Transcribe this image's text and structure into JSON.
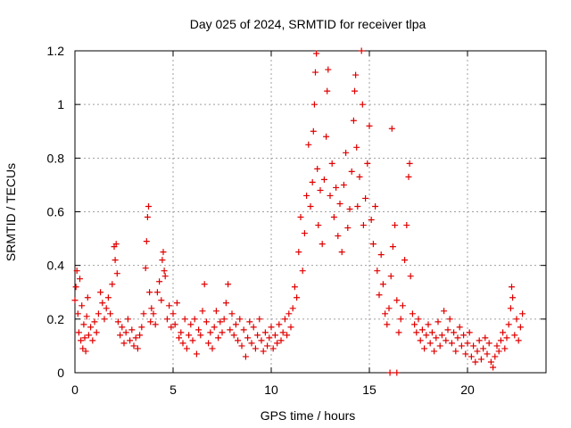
{
  "chart_data": {
    "type": "scatter",
    "title": "Day 025 of 2024, SRMTID for receiver tlpa",
    "xlabel": "GPS time / hours",
    "ylabel": "SRMTID / TECUs",
    "xlim": [
      0,
      24
    ],
    "ylim": [
      0,
      1.2
    ],
    "x_ticks": [
      0,
      5,
      10,
      15,
      20
    ],
    "x_tick_labels": [
      "0",
      "5",
      "10",
      "15",
      "20"
    ],
    "y_ticks": [
      0,
      0.2,
      0.4,
      0.6,
      0.8,
      1.0,
      1.2
    ],
    "y_tick_labels": [
      "0",
      "0.2",
      "0.4",
      "0.6",
      "0.8",
      "1",
      "1.2"
    ],
    "grid": true,
    "marker": "plus",
    "series": [
      {
        "name": "SRMTID",
        "color": "#e00000",
        "points": [
          [
            0.0,
            0.27
          ],
          [
            0.05,
            0.32
          ],
          [
            0.1,
            0.38
          ],
          [
            0.15,
            0.22
          ],
          [
            0.2,
            0.15
          ],
          [
            0.25,
            0.35
          ],
          [
            0.3,
            0.12
          ],
          [
            0.35,
            0.25
          ],
          [
            0.4,
            0.09
          ],
          [
            0.45,
            0.18
          ],
          [
            0.5,
            0.13
          ],
          [
            0.55,
            0.08
          ],
          [
            0.6,
            0.21
          ],
          [
            0.65,
            0.28
          ],
          [
            0.7,
            0.14
          ],
          [
            0.8,
            0.17
          ],
          [
            0.9,
            0.12
          ],
          [
            1.0,
            0.19
          ],
          [
            1.1,
            0.15
          ],
          [
            1.2,
            0.22
          ],
          [
            1.3,
            0.3
          ],
          [
            1.4,
            0.26
          ],
          [
            1.5,
            0.2
          ],
          [
            1.6,
            0.24
          ],
          [
            1.7,
            0.28
          ],
          [
            1.8,
            0.22
          ],
          [
            1.9,
            0.33
          ],
          [
            2.0,
            0.47
          ],
          [
            2.05,
            0.42
          ],
          [
            2.1,
            0.48
          ],
          [
            2.15,
            0.37
          ],
          [
            2.2,
            0.19
          ],
          [
            2.3,
            0.14
          ],
          [
            2.4,
            0.17
          ],
          [
            2.5,
            0.11
          ],
          [
            2.6,
            0.15
          ],
          [
            2.7,
            0.2
          ],
          [
            2.8,
            0.12
          ],
          [
            2.9,
            0.16
          ],
          [
            3.0,
            0.1
          ],
          [
            3.1,
            0.13
          ],
          [
            3.2,
            0.09
          ],
          [
            3.3,
            0.14
          ],
          [
            3.4,
            0.17
          ],
          [
            3.5,
            0.22
          ],
          [
            3.6,
            0.39
          ],
          [
            3.65,
            0.49
          ],
          [
            3.7,
            0.58
          ],
          [
            3.75,
            0.62
          ],
          [
            3.8,
            0.3
          ],
          [
            3.85,
            0.19
          ],
          [
            3.9,
            0.24
          ],
          [
            4.0,
            0.22
          ],
          [
            4.1,
            0.18
          ],
          [
            4.2,
            0.3
          ],
          [
            4.3,
            0.34
          ],
          [
            4.4,
            0.27
          ],
          [
            4.45,
            0.42
          ],
          [
            4.5,
            0.45
          ],
          [
            4.55,
            0.38
          ],
          [
            4.6,
            0.36
          ],
          [
            4.7,
            0.2
          ],
          [
            4.8,
            0.25
          ],
          [
            4.9,
            0.17
          ],
          [
            5.0,
            0.22
          ],
          [
            5.1,
            0.18
          ],
          [
            5.2,
            0.26
          ],
          [
            5.3,
            0.13
          ],
          [
            5.4,
            0.15
          ],
          [
            5.5,
            0.11
          ],
          [
            5.6,
            0.2
          ],
          [
            5.7,
            0.09
          ],
          [
            5.8,
            0.14
          ],
          [
            5.9,
            0.18
          ],
          [
            6.0,
            0.12
          ],
          [
            6.1,
            0.2
          ],
          [
            6.2,
            0.07
          ],
          [
            6.3,
            0.16
          ],
          [
            6.4,
            0.14
          ],
          [
            6.5,
            0.23
          ],
          [
            6.6,
            0.33
          ],
          [
            6.7,
            0.19
          ],
          [
            6.8,
            0.11
          ],
          [
            6.9,
            0.15
          ],
          [
            7.0,
            0.09
          ],
          [
            7.1,
            0.17
          ],
          [
            7.2,
            0.23
          ],
          [
            7.3,
            0.13
          ],
          [
            7.4,
            0.19
          ],
          [
            7.5,
            0.15
          ],
          [
            7.6,
            0.2
          ],
          [
            7.7,
            0.26
          ],
          [
            7.8,
            0.33
          ],
          [
            7.9,
            0.16
          ],
          [
            8.0,
            0.22
          ],
          [
            8.1,
            0.14
          ],
          [
            8.2,
            0.18
          ],
          [
            8.3,
            0.12
          ],
          [
            8.4,
            0.2
          ],
          [
            8.5,
            0.1
          ],
          [
            8.6,
            0.16
          ],
          [
            8.7,
            0.06
          ],
          [
            8.8,
            0.13
          ],
          [
            8.9,
            0.19
          ],
          [
            9.0,
            0.11
          ],
          [
            9.1,
            0.17
          ],
          [
            9.2,
            0.09
          ],
          [
            9.3,
            0.14
          ],
          [
            9.4,
            0.2
          ],
          [
            9.5,
            0.12
          ],
          [
            9.6,
            0.08
          ],
          [
            9.7,
            0.15
          ],
          [
            9.8,
            0.1
          ],
          [
            9.9,
            0.13
          ],
          [
            10.0,
            0.17
          ],
          [
            10.1,
            0.09
          ],
          [
            10.2,
            0.14
          ],
          [
            10.3,
            0.11
          ],
          [
            10.4,
            0.18
          ],
          [
            10.5,
            0.12
          ],
          [
            10.6,
            0.15
          ],
          [
            10.7,
            0.2
          ],
          [
            10.8,
            0.14
          ],
          [
            10.9,
            0.22
          ],
          [
            11.0,
            0.17
          ],
          [
            11.1,
            0.24
          ],
          [
            11.2,
            0.32
          ],
          [
            11.3,
            0.28
          ],
          [
            11.4,
            0.45
          ],
          [
            11.5,
            0.58
          ],
          [
            11.6,
            0.38
          ],
          [
            11.7,
            0.52
          ],
          [
            11.8,
            0.66
          ],
          [
            11.9,
            0.85
          ],
          [
            12.0,
            0.62
          ],
          [
            12.1,
            0.71
          ],
          [
            12.15,
            0.9
          ],
          [
            12.2,
            1.0
          ],
          [
            12.25,
            1.12
          ],
          [
            12.3,
            1.19
          ],
          [
            12.35,
            0.76
          ],
          [
            12.4,
            0.55
          ],
          [
            12.5,
            0.68
          ],
          [
            12.6,
            0.48
          ],
          [
            12.7,
            0.72
          ],
          [
            12.8,
            0.88
          ],
          [
            12.85,
            1.05
          ],
          [
            12.9,
            1.13
          ],
          [
            13.0,
            0.66
          ],
          [
            13.1,
            0.78
          ],
          [
            13.2,
            0.58
          ],
          [
            13.3,
            0.69
          ],
          [
            13.4,
            0.51
          ],
          [
            13.5,
            0.63
          ],
          [
            13.6,
            0.45
          ],
          [
            13.7,
            0.7
          ],
          [
            13.8,
            0.82
          ],
          [
            13.9,
            0.54
          ],
          [
            14.0,
            0.61
          ],
          [
            14.1,
            0.75
          ],
          [
            14.2,
            0.94
          ],
          [
            14.25,
            1.05
          ],
          [
            14.3,
            1.11
          ],
          [
            14.35,
            0.84
          ],
          [
            14.4,
            0.62
          ],
          [
            14.5,
            0.73
          ],
          [
            14.6,
            1.2
          ],
          [
            14.65,
            1.0
          ],
          [
            14.7,
            0.55
          ],
          [
            14.8,
            0.65
          ],
          [
            14.9,
            0.78
          ],
          [
            15.0,
            0.92
          ],
          [
            15.1,
            0.57
          ],
          [
            15.2,
            0.48
          ],
          [
            15.3,
            0.62
          ],
          [
            15.4,
            0.38
          ],
          [
            15.5,
            0.29
          ],
          [
            15.6,
            0.44
          ],
          [
            15.7,
            0.33
          ],
          [
            15.8,
            0.22
          ],
          [
            15.9,
            0.18
          ],
          [
            16.0,
            0.24
          ],
          [
            16.1,
            0.36
          ],
          [
            16.15,
            0.91
          ],
          [
            16.2,
            0.47
          ],
          [
            16.3,
            0.55
          ],
          [
            16.4,
            0.27
          ],
          [
            16.5,
            0.15
          ],
          [
            16.6,
            0.2
          ],
          [
            16.7,
            0.25
          ],
          [
            16.8,
            0.42
          ],
          [
            16.9,
            0.55
          ],
          [
            17.0,
            0.73
          ],
          [
            17.05,
            0.78
          ],
          [
            17.1,
            0.36
          ],
          [
            17.2,
            0.22
          ],
          [
            17.3,
            0.18
          ],
          [
            17.4,
            0.15
          ],
          [
            17.5,
            0.2
          ],
          [
            17.6,
            0.12
          ],
          [
            17.7,
            0.16
          ],
          [
            17.8,
            0.09
          ],
          [
            17.9,
            0.14
          ],
          [
            18.0,
            0.18
          ],
          [
            18.1,
            0.11
          ],
          [
            18.2,
            0.15
          ],
          [
            18.3,
            0.08
          ],
          [
            18.4,
            0.13
          ],
          [
            18.5,
            0.19
          ],
          [
            18.6,
            0.1
          ],
          [
            18.7,
            0.14
          ],
          [
            18.8,
            0.23
          ],
          [
            18.9,
            0.12
          ],
          [
            19.0,
            0.16
          ],
          [
            19.1,
            0.2
          ],
          [
            19.2,
            0.11
          ],
          [
            19.3,
            0.15
          ],
          [
            19.4,
            0.08
          ],
          [
            19.5,
            0.13
          ],
          [
            19.6,
            0.17
          ],
          [
            19.7,
            0.1
          ],
          [
            19.8,
            0.14
          ],
          [
            19.9,
            0.07
          ],
          [
            20.0,
            0.11
          ],
          [
            20.1,
            0.15
          ],
          [
            20.2,
            0.06
          ],
          [
            20.3,
            0.1
          ],
          [
            20.4,
            0.04
          ],
          [
            20.5,
            0.08
          ],
          [
            20.6,
            0.12
          ],
          [
            20.7,
            0.05
          ],
          [
            20.8,
            0.09
          ],
          [
            20.9,
            0.13
          ],
          [
            21.0,
            0.07
          ],
          [
            21.1,
            0.11
          ],
          [
            21.2,
            0.04
          ],
          [
            21.3,
            0.02
          ],
          [
            21.4,
            0.06
          ],
          [
            21.5,
            0.1
          ],
          [
            21.6,
            0.08
          ],
          [
            21.7,
            0.12
          ],
          [
            21.8,
            0.15
          ],
          [
            21.9,
            0.09
          ],
          [
            22.0,
            0.13
          ],
          [
            22.1,
            0.18
          ],
          [
            22.2,
            0.24
          ],
          [
            22.25,
            0.32
          ],
          [
            22.3,
            0.28
          ],
          [
            22.4,
            0.14
          ],
          [
            22.5,
            0.2
          ],
          [
            22.6,
            0.12
          ],
          [
            22.7,
            0.17
          ],
          [
            22.8,
            0.22
          ],
          [
            16.05,
            0.0
          ],
          [
            16.4,
            0.0
          ]
        ]
      }
    ]
  }
}
